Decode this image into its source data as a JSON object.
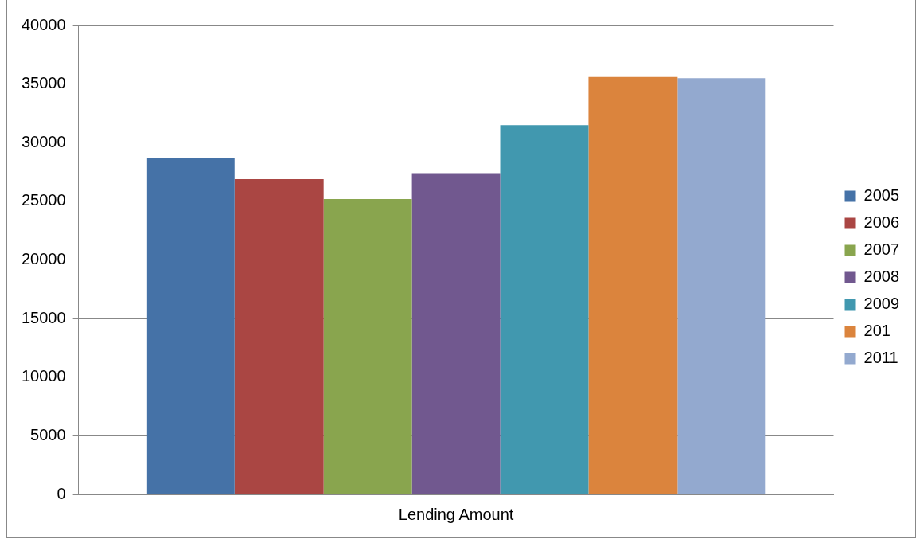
{
  "chart_data": {
    "type": "bar",
    "categories": [
      "Lending Amount"
    ],
    "series": [
      {
        "name": "2005",
        "color": "#4572a7",
        "values": [
          28700
        ]
      },
      {
        "name": "2006",
        "color": "#aa4643",
        "values": [
          26900
        ]
      },
      {
        "name": "2007",
        "color": "#89a54e",
        "values": [
          25200
        ]
      },
      {
        "name": "2008",
        "color": "#71588f",
        "values": [
          27400
        ]
      },
      {
        "name": "2009",
        "color": "#4198af",
        "values": [
          31500
        ]
      },
      {
        "name": "201",
        "color": "#db843d",
        "values": [
          35600
        ]
      },
      {
        "name": "2011",
        "color": "#93a9cf",
        "values": [
          35500
        ]
      }
    ],
    "ylim": [
      0,
      40000
    ],
    "yticks": [
      0,
      5000,
      10000,
      15000,
      20000,
      25000,
      30000,
      35000,
      40000
    ],
    "grid": "y",
    "legend": "right"
  }
}
